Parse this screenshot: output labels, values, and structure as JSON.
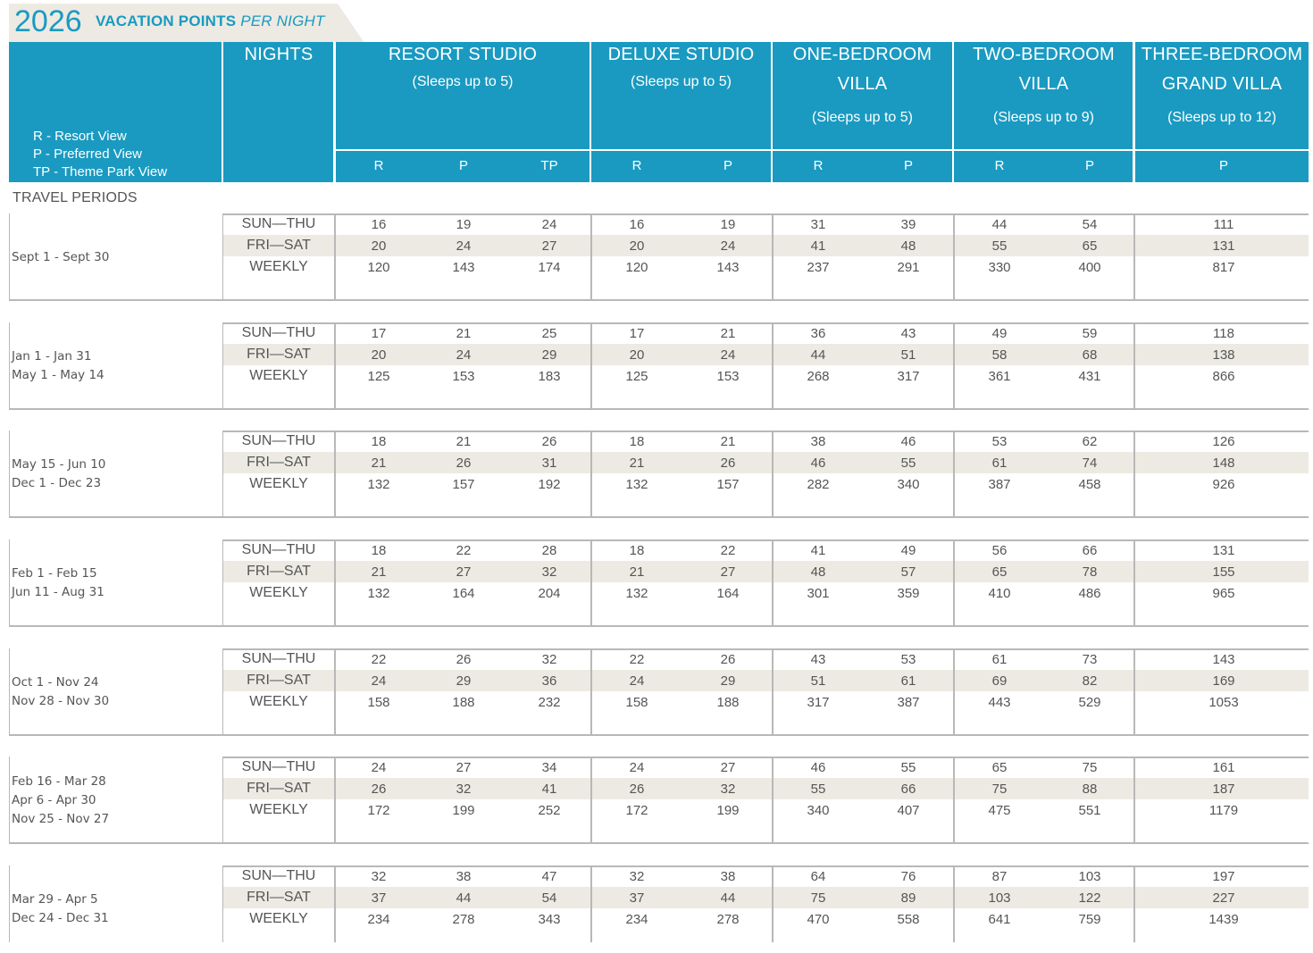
{
  "title": {
    "year": "2026",
    "main": "VACATION POINTS",
    "sub": "PER NIGHT"
  },
  "legend": [
    "R - Resort View",
    "P - Preferred View",
    "TP - Theme Park View"
  ],
  "header": {
    "nights": "NIGHTS",
    "groups": [
      {
        "lines": [
          "RESORT STUDIO"
        ],
        "sleeps": "(Sleeps up to 5)",
        "codes": [
          "R",
          "P",
          "TP"
        ]
      },
      {
        "lines": [
          "DELUXE STUDIO"
        ],
        "sleeps": "(Sleeps up to 5)",
        "codes": [
          "R",
          "P"
        ]
      },
      {
        "lines": [
          "ONE-BEDROOM",
          "VILLA"
        ],
        "sleeps": "(Sleeps up to 5)",
        "codes": [
          "R",
          "P"
        ]
      },
      {
        "lines": [
          "TWO-BEDROOM",
          "VILLA"
        ],
        "sleeps": "(Sleeps up to 9)",
        "codes": [
          "R",
          "P"
        ]
      },
      {
        "lines": [
          "THREE-BEDROOM",
          "GRAND VILLA"
        ],
        "sleeps": "(Sleeps up to 12)",
        "codes": [
          "P"
        ]
      }
    ]
  },
  "travel_periods_label": "TRAVEL PERIODS",
  "night_types": [
    "SUN—THU",
    "FRI—SAT",
    "WEEKLY"
  ],
  "periods": [
    {
      "dates": [
        "Sept 1 - Sept 30"
      ],
      "rows": [
        [
          "16",
          "19",
          "24",
          "16",
          "19",
          "31",
          "39",
          "44",
          "54",
          "111"
        ],
        [
          "20",
          "24",
          "27",
          "20",
          "24",
          "41",
          "48",
          "55",
          "65",
          "131"
        ],
        [
          "120",
          "143",
          "174",
          "120",
          "143",
          "237",
          "291",
          "330",
          "400",
          "817"
        ]
      ]
    },
    {
      "dates": [
        "Jan 1 - Jan 31",
        "May 1 - May 14"
      ],
      "rows": [
        [
          "17",
          "21",
          "25",
          "17",
          "21",
          "36",
          "43",
          "49",
          "59",
          "118"
        ],
        [
          "20",
          "24",
          "29",
          "20",
          "24",
          "44",
          "51",
          "58",
          "68",
          "138"
        ],
        [
          "125",
          "153",
          "183",
          "125",
          "153",
          "268",
          "317",
          "361",
          "431",
          "866"
        ]
      ]
    },
    {
      "dates": [
        "May 15 - Jun 10",
        "Dec 1 - Dec 23"
      ],
      "rows": [
        [
          "18",
          "21",
          "26",
          "18",
          "21",
          "38",
          "46",
          "53",
          "62",
          "126"
        ],
        [
          "21",
          "26",
          "31",
          "21",
          "26",
          "46",
          "55",
          "61",
          "74",
          "148"
        ],
        [
          "132",
          "157",
          "192",
          "132",
          "157",
          "282",
          "340",
          "387",
          "458",
          "926"
        ]
      ]
    },
    {
      "dates": [
        "Feb 1 - Feb 15",
        "Jun 11 - Aug 31"
      ],
      "rows": [
        [
          "18",
          "22",
          "28",
          "18",
          "22",
          "41",
          "49",
          "56",
          "66",
          "131"
        ],
        [
          "21",
          "27",
          "32",
          "21",
          "27",
          "48",
          "57",
          "65",
          "78",
          "155"
        ],
        [
          "132",
          "164",
          "204",
          "132",
          "164",
          "301",
          "359",
          "410",
          "486",
          "965"
        ]
      ]
    },
    {
      "dates": [
        "Oct 1 - Nov 24",
        "Nov 28 - Nov 30"
      ],
      "rows": [
        [
          "22",
          "26",
          "32",
          "22",
          "26",
          "43",
          "53",
          "61",
          "73",
          "143"
        ],
        [
          "24",
          "29",
          "36",
          "24",
          "29",
          "51",
          "61",
          "69",
          "82",
          "169"
        ],
        [
          "158",
          "188",
          "232",
          "158",
          "188",
          "317",
          "387",
          "443",
          "529",
          "1053"
        ]
      ]
    },
    {
      "dates": [
        "Feb 16 - Mar 28",
        "Apr 6 - Apr 30",
        "Nov 25 - Nov 27"
      ],
      "rows": [
        [
          "24",
          "27",
          "34",
          "24",
          "27",
          "46",
          "55",
          "65",
          "75",
          "161"
        ],
        [
          "26",
          "32",
          "41",
          "26",
          "32",
          "55",
          "66",
          "75",
          "88",
          "187"
        ],
        [
          "172",
          "199",
          "252",
          "172",
          "199",
          "340",
          "407",
          "475",
          "551",
          "1179"
        ]
      ]
    },
    {
      "dates": [
        "Mar 29 - Apr 5",
        "Dec 24 - Dec 31"
      ],
      "rows": [
        [
          "32",
          "38",
          "47",
          "32",
          "38",
          "64",
          "76",
          "87",
          "103",
          "197"
        ],
        [
          "37",
          "44",
          "54",
          "37",
          "44",
          "75",
          "89",
          "103",
          "122",
          "227"
        ],
        [
          "234",
          "278",
          "343",
          "234",
          "278",
          "470",
          "558",
          "641",
          "759",
          "1439"
        ]
      ]
    }
  ]
}
